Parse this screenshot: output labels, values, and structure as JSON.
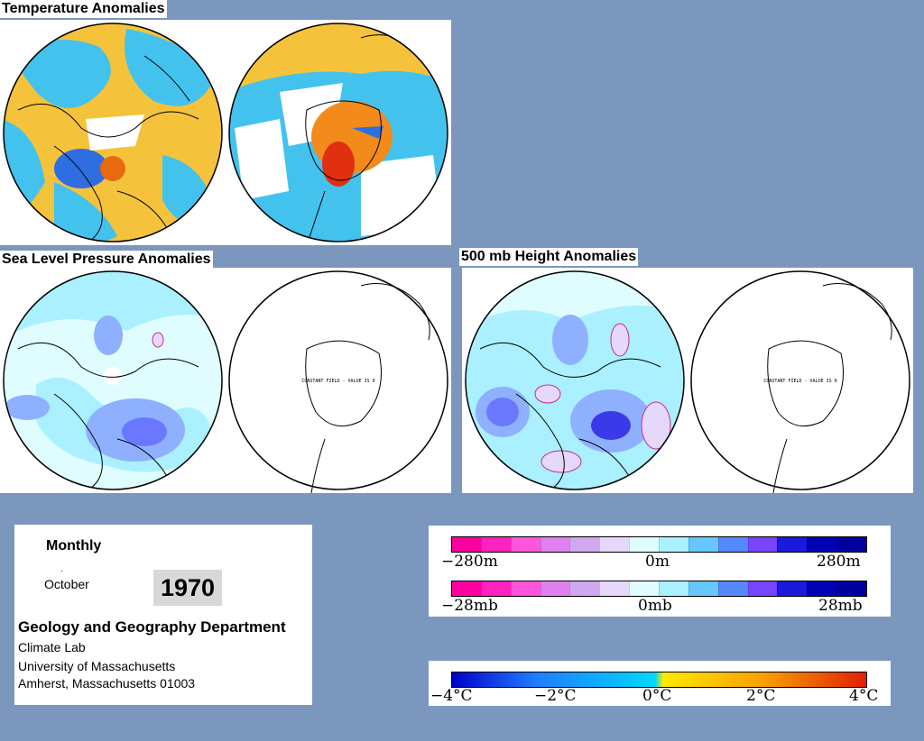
{
  "titles": {
    "temp": "Temperature Anomalies",
    "slp": "Sea Level Pressure Anomalies",
    "h500": "500 mb Height Anomalies"
  },
  "constant_field_text": "CONSTANT FIELD - VALUE IS 0",
  "info": {
    "heading": "Monthly",
    "month": "October",
    "year": "1970",
    "department": "Geology and Geography Department",
    "lab": "Climate Lab",
    "university": "University of Massachusetts",
    "address": "Amherst, Massachusetts 01003"
  },
  "legend_height": {
    "left": "−280m",
    "center": "0m",
    "right": "280m"
  },
  "legend_pressure": {
    "left": "−28mb",
    "center": "0mb",
    "right": "28mb"
  },
  "legend_temp": {
    "t1": "−4°C",
    "t2": "−2°C",
    "t3": "0°C",
    "t4": "2°C",
    "t5": "4°C"
  },
  "colors": {
    "background": "#7b97bd",
    "anomaly_scale": [
      "#ff00a0",
      "#ff22c0",
      "#ff55dd",
      "#e080ee",
      "#d0a8f0",
      "#e6d8fa",
      "#dffcff",
      "#aaf0ff",
      "#66c6ff",
      "#5588ff",
      "#7744ff",
      "#1a1adc",
      "#0000b4",
      "#0000a0"
    ],
    "temp_scale_cold": "#0000c8",
    "temp_scale_zero": "#00d8ff",
    "temp_scale_warm": "#e02000"
  }
}
